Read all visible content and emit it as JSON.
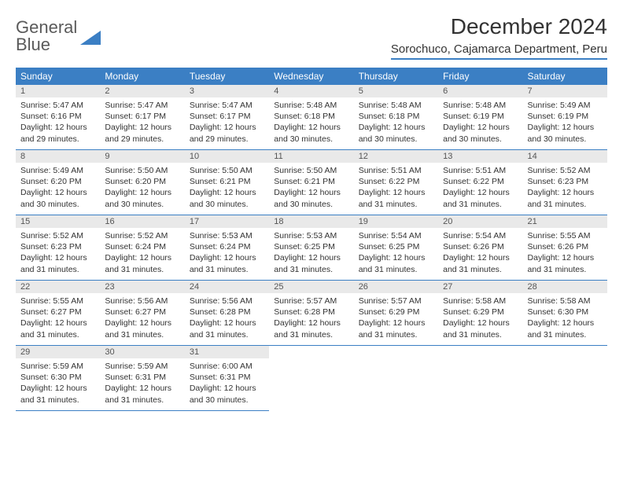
{
  "brand": {
    "word1": "General",
    "word2": "Blue"
  },
  "title": "December 2024",
  "location": "Sorochuco, Cajamarca Department, Peru",
  "colors": {
    "header_bg": "#3b7fc4",
    "header_fg": "#ffffff",
    "daynum_bg": "#e9e9e9",
    "text": "#333333",
    "rule": "#3b7fc4",
    "page_bg": "#ffffff"
  },
  "weekdays": [
    "Sunday",
    "Monday",
    "Tuesday",
    "Wednesday",
    "Thursday",
    "Friday",
    "Saturday"
  ],
  "layout": {
    "first_weekday_offset": 0,
    "days_in_month": 31
  },
  "days": [
    {
      "n": 1,
      "sunrise": "5:47 AM",
      "sunset": "6:16 PM",
      "daylight": "12 hours and 29 minutes."
    },
    {
      "n": 2,
      "sunrise": "5:47 AM",
      "sunset": "6:17 PM",
      "daylight": "12 hours and 29 minutes."
    },
    {
      "n": 3,
      "sunrise": "5:47 AM",
      "sunset": "6:17 PM",
      "daylight": "12 hours and 29 minutes."
    },
    {
      "n": 4,
      "sunrise": "5:48 AM",
      "sunset": "6:18 PM",
      "daylight": "12 hours and 30 minutes."
    },
    {
      "n": 5,
      "sunrise": "5:48 AM",
      "sunset": "6:18 PM",
      "daylight": "12 hours and 30 minutes."
    },
    {
      "n": 6,
      "sunrise": "5:48 AM",
      "sunset": "6:19 PM",
      "daylight": "12 hours and 30 minutes."
    },
    {
      "n": 7,
      "sunrise": "5:49 AM",
      "sunset": "6:19 PM",
      "daylight": "12 hours and 30 minutes."
    },
    {
      "n": 8,
      "sunrise": "5:49 AM",
      "sunset": "6:20 PM",
      "daylight": "12 hours and 30 minutes."
    },
    {
      "n": 9,
      "sunrise": "5:50 AM",
      "sunset": "6:20 PM",
      "daylight": "12 hours and 30 minutes."
    },
    {
      "n": 10,
      "sunrise": "5:50 AM",
      "sunset": "6:21 PM",
      "daylight": "12 hours and 30 minutes."
    },
    {
      "n": 11,
      "sunrise": "5:50 AM",
      "sunset": "6:21 PM",
      "daylight": "12 hours and 30 minutes."
    },
    {
      "n": 12,
      "sunrise": "5:51 AM",
      "sunset": "6:22 PM",
      "daylight": "12 hours and 31 minutes."
    },
    {
      "n": 13,
      "sunrise": "5:51 AM",
      "sunset": "6:22 PM",
      "daylight": "12 hours and 31 minutes."
    },
    {
      "n": 14,
      "sunrise": "5:52 AM",
      "sunset": "6:23 PM",
      "daylight": "12 hours and 31 minutes."
    },
    {
      "n": 15,
      "sunrise": "5:52 AM",
      "sunset": "6:23 PM",
      "daylight": "12 hours and 31 minutes."
    },
    {
      "n": 16,
      "sunrise": "5:52 AM",
      "sunset": "6:24 PM",
      "daylight": "12 hours and 31 minutes."
    },
    {
      "n": 17,
      "sunrise": "5:53 AM",
      "sunset": "6:24 PM",
      "daylight": "12 hours and 31 minutes."
    },
    {
      "n": 18,
      "sunrise": "5:53 AM",
      "sunset": "6:25 PM",
      "daylight": "12 hours and 31 minutes."
    },
    {
      "n": 19,
      "sunrise": "5:54 AM",
      "sunset": "6:25 PM",
      "daylight": "12 hours and 31 minutes."
    },
    {
      "n": 20,
      "sunrise": "5:54 AM",
      "sunset": "6:26 PM",
      "daylight": "12 hours and 31 minutes."
    },
    {
      "n": 21,
      "sunrise": "5:55 AM",
      "sunset": "6:26 PM",
      "daylight": "12 hours and 31 minutes."
    },
    {
      "n": 22,
      "sunrise": "5:55 AM",
      "sunset": "6:27 PM",
      "daylight": "12 hours and 31 minutes."
    },
    {
      "n": 23,
      "sunrise": "5:56 AM",
      "sunset": "6:27 PM",
      "daylight": "12 hours and 31 minutes."
    },
    {
      "n": 24,
      "sunrise": "5:56 AM",
      "sunset": "6:28 PM",
      "daylight": "12 hours and 31 minutes."
    },
    {
      "n": 25,
      "sunrise": "5:57 AM",
      "sunset": "6:28 PM",
      "daylight": "12 hours and 31 minutes."
    },
    {
      "n": 26,
      "sunrise": "5:57 AM",
      "sunset": "6:29 PM",
      "daylight": "12 hours and 31 minutes."
    },
    {
      "n": 27,
      "sunrise": "5:58 AM",
      "sunset": "6:29 PM",
      "daylight": "12 hours and 31 minutes."
    },
    {
      "n": 28,
      "sunrise": "5:58 AM",
      "sunset": "6:30 PM",
      "daylight": "12 hours and 31 minutes."
    },
    {
      "n": 29,
      "sunrise": "5:59 AM",
      "sunset": "6:30 PM",
      "daylight": "12 hours and 31 minutes."
    },
    {
      "n": 30,
      "sunrise": "5:59 AM",
      "sunset": "6:31 PM",
      "daylight": "12 hours and 31 minutes."
    },
    {
      "n": 31,
      "sunrise": "6:00 AM",
      "sunset": "6:31 PM",
      "daylight": "12 hours and 30 minutes."
    }
  ],
  "labels": {
    "sunrise": "Sunrise:",
    "sunset": "Sunset:",
    "daylight": "Daylight:"
  }
}
